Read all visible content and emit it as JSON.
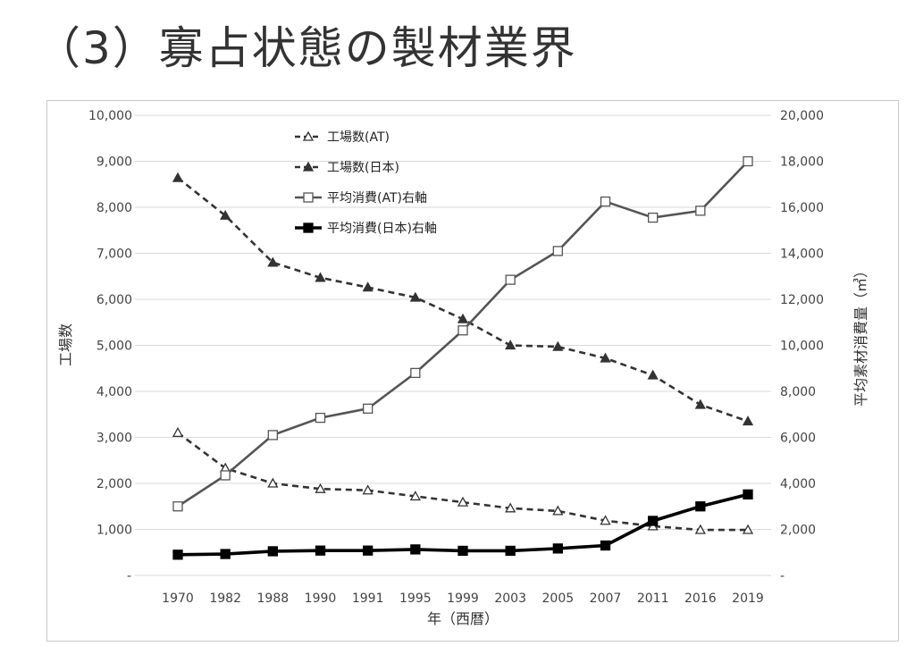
{
  "slide": {
    "title": "（3）寡占状態の製材業界"
  },
  "colors": {
    "dashed_series": "#333333",
    "solid_at": "#555555",
    "solid_jp": "#000000",
    "grid": "#d9d9d9"
  },
  "chart_data": {
    "type": "line",
    "title": "",
    "categories": [
      "1970",
      "1982",
      "1988",
      "1990",
      "1991",
      "1995",
      "1999",
      "2003",
      "2005",
      "2007",
      "2011",
      "2016",
      "2019"
    ],
    "xlabel": "年（西暦）",
    "ylabel_left": "工場数",
    "ylabel_right": "平均素材消費量（㎥）",
    "ylim_left": [
      0,
      10000
    ],
    "ylim_right": [
      0,
      20000
    ],
    "left_ticks": [
      "-",
      "1,000",
      "2,000",
      "3,000",
      "4,000",
      "5,000",
      "6,000",
      "7,000",
      "8,000",
      "9,000",
      "10,000"
    ],
    "right_ticks": [
      "-",
      "2,000",
      "4,000",
      "6,000",
      "8,000",
      "10,000",
      "12,000",
      "14,000",
      "16,000",
      "18,000",
      "20,000"
    ],
    "grid": true,
    "legend_position": "top-left",
    "series": [
      {
        "name": "工場数(AT)",
        "axis": "left",
        "style": "dashed",
        "marker": "open-triangle",
        "values": [
          3100,
          2330,
          2000,
          1880,
          1850,
          1720,
          1590,
          1460,
          1400,
          1190,
          1070,
          990,
          990
        ]
      },
      {
        "name": "工場数(日本)",
        "axis": "left",
        "style": "dashed",
        "marker": "filled-triangle",
        "values": [
          8640,
          7820,
          6800,
          6470,
          6260,
          6040,
          5570,
          5000,
          4970,
          4720,
          4350,
          3710,
          3350
        ]
      },
      {
        "name": "平均消費(AT)右軸",
        "axis": "right",
        "style": "solid",
        "marker": "open-square",
        "values": [
          3000,
          4350,
          6100,
          6850,
          7250,
          8800,
          10650,
          12850,
          14100,
          16250,
          15550,
          15850,
          18000
        ]
      },
      {
        "name": "平均消費(日本)右軸",
        "axis": "right",
        "style": "solid-thick",
        "marker": "filled-square",
        "values": [
          900,
          930,
          1050,
          1080,
          1080,
          1130,
          1070,
          1070,
          1170,
          1300,
          2370,
          3000,
          3520
        ]
      }
    ]
  }
}
